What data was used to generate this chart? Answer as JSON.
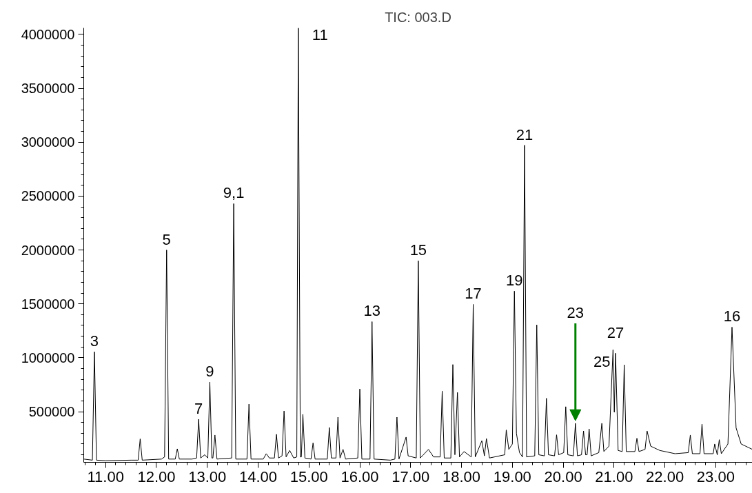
{
  "chart_data": {
    "type": "line",
    "title": "TIC: 003.D",
    "color": "#000000",
    "grid": false,
    "x": [
      10.57,
      10.74,
      10.78,
      10.82,
      11.0,
      11.5,
      11.64,
      11.68,
      11.72,
      12.1,
      12.16,
      12.2,
      12.24,
      12.37,
      12.41,
      12.45,
      12.7,
      12.79,
      12.83,
      12.87,
      12.95,
      13.01,
      13.05,
      13.09,
      13.11,
      13.15,
      13.19,
      13.48,
      13.52,
      13.56,
      13.78,
      13.82,
      13.86,
      14.1,
      14.16,
      14.22,
      14.32,
      14.36,
      14.4,
      14.47,
      14.51,
      14.55,
      14.62,
      14.7,
      14.76,
      14.79,
      14.83,
      14.85,
      14.88,
      14.92,
      15.04,
      15.08,
      15.12,
      15.36,
      15.4,
      15.44,
      15.53,
      15.57,
      15.61,
      15.67,
      15.72,
      15.96,
      16.0,
      16.04,
      16.2,
      16.24,
      16.28,
      16.6,
      16.69,
      16.73,
      16.77,
      16.91,
      16.95,
      17.11,
      17.15,
      17.19,
      17.35,
      17.45,
      17.58,
      17.62,
      17.66,
      17.79,
      17.83,
      17.87,
      17.92,
      17.96,
      18.05,
      18.19,
      18.23,
      18.27,
      18.4,
      18.45,
      18.49,
      18.55,
      18.85,
      18.88,
      18.93,
      19.0,
      19.04,
      19.08,
      19.14,
      19.2,
      19.24,
      19.28,
      19.44,
      19.48,
      19.52,
      19.63,
      19.67,
      19.71,
      19.83,
      19.87,
      19.91,
      20.01,
      20.05,
      20.09,
      20.2,
      20.24,
      20.28,
      20.36,
      20.4,
      20.44,
      20.47,
      20.51,
      20.55,
      20.7,
      20.76,
      20.8,
      20.9,
      20.98,
      21.005,
      21.03,
      21.08,
      21.16,
      21.2,
      21.24,
      21.41,
      21.45,
      21.49,
      21.61,
      21.65,
      21.72,
      21.9,
      22.2,
      22.46,
      22.5,
      22.54,
      22.69,
      22.73,
      22.77,
      22.95,
      22.98,
      23.03,
      23.07,
      23.11,
      23.24,
      23.32,
      23.4,
      23.5,
      23.72
    ],
    "values": [
      60000,
      50000,
      1055000,
      50000,
      45000,
      50000,
      50000,
      247000,
      50000,
      60000,
      80000,
      2000000,
      60000,
      60000,
      155000,
      60000,
      60000,
      70000,
      430000,
      70000,
      100000,
      70000,
      774000,
      70000,
      70000,
      283000,
      60000,
      70000,
      2430000,
      60000,
      60000,
      570000,
      60000,
      60000,
      110000,
      70000,
      70000,
      290000,
      70000,
      90000,
      506000,
      80000,
      140000,
      70000,
      80000,
      4060000,
      80000,
      80000,
      475000,
      70000,
      60000,
      210000,
      60000,
      60000,
      353000,
      70000,
      70000,
      449000,
      70000,
      150000,
      60000,
      70000,
      710000,
      60000,
      60000,
      1335000,
      60000,
      50000,
      60000,
      449000,
      60000,
      264000,
      90000,
      70000,
      1900000,
      70000,
      150000,
      80000,
      80000,
      690000,
      70000,
      70000,
      937000,
      100000,
      678000,
      80000,
      130000,
      80000,
      1495000,
      80000,
      230000,
      90000,
      250000,
      70000,
      100000,
      330000,
      150000,
      200000,
      1618000,
      300000,
      120000,
      80000,
      2972000,
      80000,
      90000,
      1305000,
      100000,
      90000,
      624000,
      100000,
      90000,
      285000,
      100000,
      120000,
      546000,
      100000,
      90000,
      392000,
      90000,
      100000,
      321000,
      100000,
      100000,
      340000,
      90000,
      120000,
      392000,
      130000,
      180000,
      1074000,
      495000,
      1042000,
      140000,
      130000,
      934000,
      130000,
      130000,
      253000,
      130000,
      150000,
      321000,
      180000,
      140000,
      110000,
      120000,
      283000,
      110000,
      110000,
      385000,
      110000,
      110000,
      200000,
      100000,
      240000,
      110000,
      200000,
      1284000,
      350000,
      200000,
      150000
    ],
    "xlim": [
      10.57,
      23.72
    ],
    "ylim": [
      30000,
      4060000
    ],
    "xticks": [
      {
        "value": 11,
        "label": "11.00"
      },
      {
        "value": 12,
        "label": "12.00"
      },
      {
        "value": 13,
        "label": "13.00"
      },
      {
        "value": 14,
        "label": "14.00"
      },
      {
        "value": 15,
        "label": "15.00"
      },
      {
        "value": 16,
        "label": "16.00"
      },
      {
        "value": 17,
        "label": "17.00"
      },
      {
        "value": 18,
        "label": "18.00"
      },
      {
        "value": 19,
        "label": "19.00"
      },
      {
        "value": 20,
        "label": "20.00"
      },
      {
        "value": 21,
        "label": "21.00"
      },
      {
        "value": 22,
        "label": "22.00"
      },
      {
        "value": 23,
        "label": "23.00"
      }
    ],
    "yticks": [
      500000,
      1000000,
      1500000,
      2000000,
      2500000,
      3000000,
      3500000,
      4000000
    ],
    "annotations": [
      {
        "text": "3",
        "x": 10.78,
        "y": 1055000
      },
      {
        "text": "5",
        "x": 12.2,
        "y": 2000000
      },
      {
        "text": "7",
        "x": 12.83,
        "y": 430000
      },
      {
        "text": "9",
        "x": 13.05,
        "y": 774000
      },
      {
        "text": "9,1",
        "x": 13.52,
        "y": 2430000
      },
      {
        "text": "11",
        "x": 14.79,
        "y": 4060000
      },
      {
        "text": "13",
        "x": 16.24,
        "y": 1335000
      },
      {
        "text": "15",
        "x": 17.15,
        "y": 1900000
      },
      {
        "text": "17",
        "x": 18.23,
        "y": 1495000
      },
      {
        "text": "19",
        "x": 19.04,
        "y": 1618000
      },
      {
        "text": "21",
        "x": 19.24,
        "y": 2972000
      },
      {
        "text": "23",
        "x": 20.24,
        "y": 392000
      },
      {
        "text": "25",
        "x": 20.98,
        "y": 1074000
      },
      {
        "text": "27",
        "x": 21.03,
        "y": 1042000
      },
      {
        "text": "16",
        "x": 23.32,
        "y": 1284000
      }
    ]
  }
}
